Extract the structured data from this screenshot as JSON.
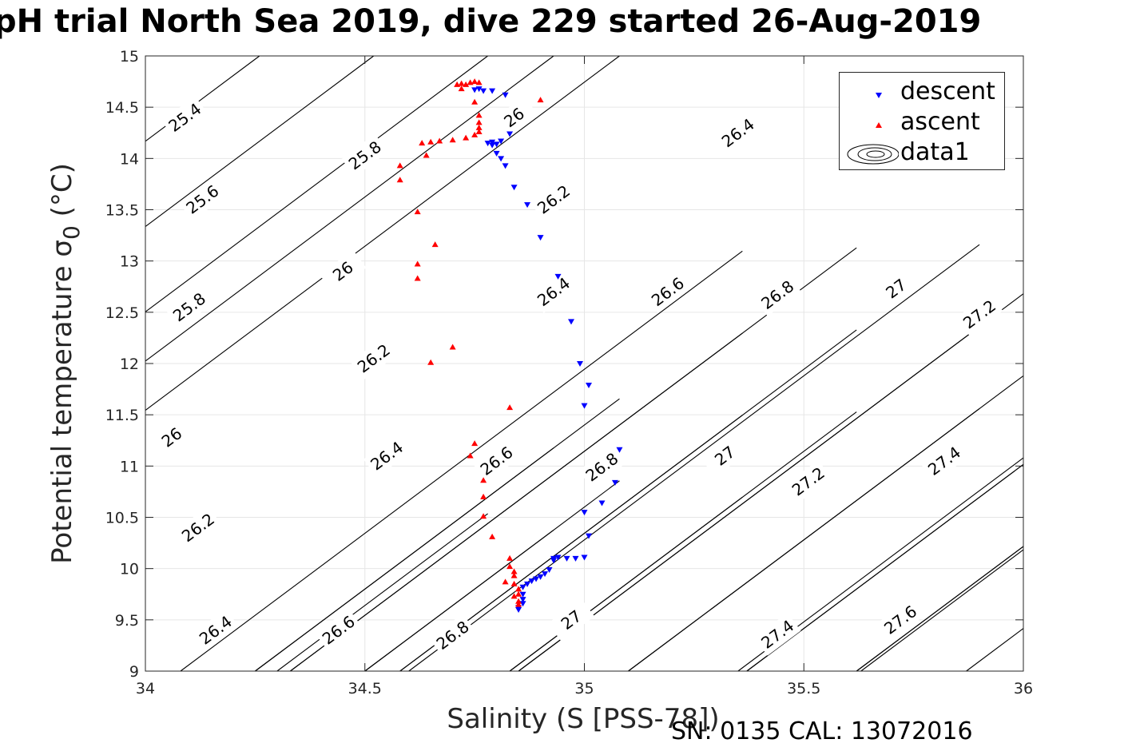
{
  "title": "pH trial North Sea 2019, dive 229 started 26-Aug-2019",
  "xlabel": "Salinity (S [PSS-78])",
  "ylabel": "Potential temperature σ",
  "ylabel_sub": "0",
  "ylabel_unit": " (°C)",
  "footer": "SN: 0135  CAL: 13072016",
  "legend": {
    "placement": "top-right",
    "entries": [
      {
        "name": "descent",
        "marker": "down-triangle",
        "color": "#0000ff"
      },
      {
        "name": "ascent",
        "marker": "up-triangle",
        "color": "#ff0000"
      },
      {
        "name": "data1",
        "marker": "contour",
        "color": "#000000"
      }
    ]
  },
  "chart_data": {
    "type": "scatter",
    "xlim": [
      34,
      36
    ],
    "ylim": [
      9,
      15
    ],
    "grid": true,
    "x_ticks": [
      "34",
      "34.5",
      "35",
      "35.5",
      "36"
    ],
    "y_ticks": [
      "9",
      "9.5",
      "10",
      "10.5",
      "11",
      "11.5",
      "12",
      "12.5",
      "13",
      "13.5",
      "14",
      "14.5",
      "15"
    ],
    "contours": [
      {
        "level": "25.4",
        "x0": 34.0,
        "x1": 34.26,
        "label": {
          "x": 34.09,
          "y": 14.4
        }
      },
      {
        "level": "25.6",
        "x0": 34.0,
        "x1": 34.52,
        "label": {
          "x": 34.13,
          "y": 13.6
        }
      },
      {
        "level": "25.8",
        "x0": 34.0,
        "x1": 34.78,
        "label": {
          "x": 34.1,
          "y": 12.55
        }
      },
      {
        "level": "25.8",
        "x0": 34.3,
        "x1": 34.78,
        "label": {
          "x": 34.5,
          "y": 14.03
        }
      },
      {
        "level": "26",
        "x0": 34.0,
        "x1": 34.93,
        "label": {
          "x": 34.06,
          "y": 11.28
        }
      },
      {
        "level": "26",
        "x0": 34.25,
        "x1": 34.93,
        "label": {
          "x": 34.45,
          "y": 12.9
        }
      },
      {
        "level": "26",
        "x0": 34.5,
        "x1": 34.93,
        "label": {
          "x": 34.84,
          "y": 14.4
        }
      },
      {
        "level": "26.2",
        "x0": 34.0,
        "x1": 35.08,
        "label": {
          "x": 34.12,
          "y": 10.4
        }
      },
      {
        "level": "26.2",
        "x0": 34.25,
        "x1": 35.08,
        "label": {
          "x": 34.52,
          "y": 12.05
        }
      },
      {
        "level": "26.2",
        "x0": 34.5,
        "x1": 35.08,
        "label": {
          "x": 34.93,
          "y": 13.6
        }
      },
      {
        "level": "26.4",
        "x0": 34.08,
        "x1": 35.36,
        "label": {
          "x": 34.16,
          "y": 9.4
        }
      },
      {
        "level": "26.4",
        "x0": 34.33,
        "x1": 35.36,
        "label": {
          "x": 34.55,
          "y": 11.1
        }
      },
      {
        "level": "26.4",
        "x0": 34.58,
        "x1": 35.36,
        "label": {
          "x": 34.93,
          "y": 12.7
        }
      },
      {
        "level": "26.4",
        "x0": 34.83,
        "x1": 35.36,
        "label": {
          "x": 35.35,
          "y": 14.25
        }
      },
      {
        "level": "26.6",
        "x0": 34.33,
        "x1": 35.62,
        "label": {
          "x": 34.44,
          "y": 9.4
        }
      },
      {
        "level": "26.6",
        "x0": 34.58,
        "x1": 35.62,
        "label": {
          "x": 34.8,
          "y": 11.05
        }
      },
      {
        "level": "26.6",
        "x0": 34.83,
        "x1": 35.62,
        "label": {
          "x": 35.19,
          "y": 12.7
        }
      },
      {
        "level": "26.8",
        "x0": 34.6,
        "x1": 35.9,
        "label": {
          "x": 34.7,
          "y": 9.35
        }
      },
      {
        "level": "26.8",
        "x0": 34.85,
        "x1": 35.9,
        "label": {
          "x": 35.04,
          "y": 10.99
        }
      },
      {
        "level": "26.8",
        "x0": 35.1,
        "x1": 35.9,
        "label": {
          "x": 35.44,
          "y": 12.67
        }
      },
      {
        "level": "27",
        "x0": 34.85,
        "x1": 36.0,
        "label": {
          "x": 34.97,
          "y": 9.5
        }
      },
      {
        "level": "27",
        "x0": 35.1,
        "x1": 36.0,
        "label": {
          "x": 35.32,
          "y": 11.1
        }
      },
      {
        "level": "27",
        "x0": 35.35,
        "x1": 36.0,
        "label": {
          "x": 35.71,
          "y": 12.73
        }
      },
      {
        "level": "27.2",
        "x0": 35.37,
        "x1": 36.0,
        "label": {
          "x": 35.51,
          "y": 10.85
        }
      },
      {
        "level": "27.2",
        "x0": 35.62,
        "x1": 36.0,
        "label": {
          "x": 35.9,
          "y": 12.48
        }
      },
      {
        "level": "27.4",
        "x0": 35.37,
        "x1": 36.0,
        "label": {
          "x": 35.44,
          "y": 9.36
        }
      },
      {
        "level": "27.4",
        "x0": 35.62,
        "x1": 36.0,
        "label": {
          "x": 35.82,
          "y": 11.05
        }
      },
      {
        "level": "27.6",
        "x0": 35.63,
        "x1": 36.0,
        "label": {
          "x": 35.72,
          "y": 9.5
        }
      },
      {
        "level": "27.8",
        "x0": 35.87,
        "x1": 36.0,
        "label": null
      }
    ],
    "series": [
      {
        "name": "descent",
        "marker": "down-triangle",
        "color": "#0000ff",
        "points": [
          [
            34.75,
            14.67
          ],
          [
            34.76,
            14.68
          ],
          [
            34.77,
            14.66
          ],
          [
            34.79,
            14.66
          ],
          [
            34.82,
            14.62
          ],
          [
            34.79,
            14.16
          ],
          [
            34.78,
            14.15
          ],
          [
            34.79,
            14.13
          ],
          [
            34.8,
            14.14
          ],
          [
            34.81,
            14.17
          ],
          [
            34.83,
            14.24
          ],
          [
            34.8,
            14.05
          ],
          [
            34.81,
            14.0
          ],
          [
            34.82,
            13.93
          ],
          [
            34.84,
            13.72
          ],
          [
            34.87,
            13.55
          ],
          [
            34.9,
            13.23
          ],
          [
            34.94,
            12.85
          ],
          [
            34.97,
            12.41
          ],
          [
            34.99,
            12.0
          ],
          [
            35.01,
            11.79
          ],
          [
            35.0,
            11.59
          ],
          [
            35.08,
            11.16
          ],
          [
            35.07,
            10.84
          ],
          [
            35.04,
            10.64
          ],
          [
            35.0,
            10.55
          ],
          [
            35.01,
            10.32
          ],
          [
            35.0,
            10.11
          ],
          [
            34.98,
            10.1
          ],
          [
            34.96,
            10.1
          ],
          [
            34.94,
            10.11
          ],
          [
            34.93,
            10.1
          ],
          [
            34.93,
            10.08
          ],
          [
            34.92,
            9.99
          ],
          [
            34.91,
            9.95
          ],
          [
            34.9,
            9.92
          ],
          [
            34.89,
            9.9
          ],
          [
            34.88,
            9.88
          ],
          [
            34.87,
            9.85
          ],
          [
            34.86,
            9.82
          ],
          [
            34.86,
            9.75
          ],
          [
            34.86,
            9.7
          ],
          [
            34.86,
            9.66
          ],
          [
            34.85,
            9.62
          ],
          [
            34.85,
            9.6
          ]
        ]
      },
      {
        "name": "ascent",
        "marker": "up-triangle",
        "color": "#ff0000",
        "points": [
          [
            34.72,
            14.73
          ],
          [
            34.73,
            14.72
          ],
          [
            34.74,
            14.74
          ],
          [
            34.75,
            14.75
          ],
          [
            34.76,
            14.74
          ],
          [
            34.71,
            14.72
          ],
          [
            34.72,
            14.68
          ],
          [
            34.75,
            14.55
          ],
          [
            34.9,
            14.57
          ],
          [
            34.76,
            14.42
          ],
          [
            34.76,
            14.35
          ],
          [
            34.76,
            14.3
          ],
          [
            34.76,
            14.26
          ],
          [
            34.75,
            14.23
          ],
          [
            34.73,
            14.2
          ],
          [
            34.7,
            14.18
          ],
          [
            34.67,
            14.17
          ],
          [
            34.65,
            14.16
          ],
          [
            34.63,
            14.15
          ],
          [
            34.64,
            14.03
          ],
          [
            34.58,
            13.93
          ],
          [
            34.58,
            13.79
          ],
          [
            34.62,
            13.48
          ],
          [
            34.66,
            13.16
          ],
          [
            34.62,
            12.97
          ],
          [
            34.62,
            12.83
          ],
          [
            34.7,
            12.16
          ],
          [
            34.65,
            12.01
          ],
          [
            34.83,
            11.57
          ],
          [
            34.75,
            11.22
          ],
          [
            34.74,
            11.1
          ],
          [
            34.77,
            10.86
          ],
          [
            34.77,
            10.7
          ],
          [
            34.77,
            10.51
          ],
          [
            34.79,
            10.31
          ],
          [
            34.83,
            10.1
          ],
          [
            34.83,
            10.02
          ],
          [
            34.84,
            9.97
          ],
          [
            34.84,
            9.93
          ],
          [
            34.82,
            9.87
          ],
          [
            34.84,
            9.85
          ],
          [
            34.85,
            9.8
          ],
          [
            34.85,
            9.75
          ],
          [
            34.84,
            9.73
          ],
          [
            34.85,
            9.68
          ],
          [
            34.85,
            9.65
          ]
        ]
      }
    ]
  }
}
